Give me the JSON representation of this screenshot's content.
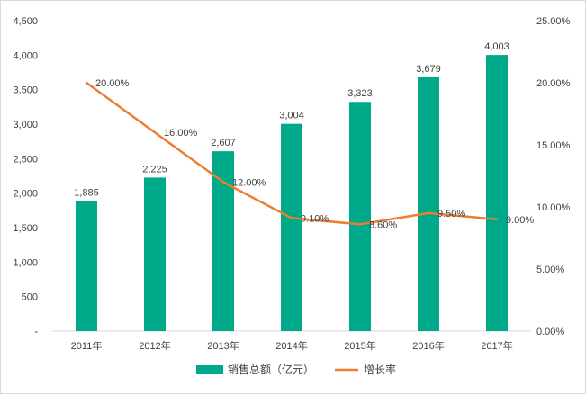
{
  "chart_data": {
    "type": "bar",
    "categories": [
      "2011年",
      "2012年",
      "2013年",
      "2014年",
      "2015年",
      "2016年",
      "2017年"
    ],
    "series": [
      {
        "name": "销售总额（亿元）",
        "type": "bar",
        "axis": "left",
        "color": "#00a98a",
        "values": [
          1885,
          2225,
          2607,
          3004,
          3323,
          3679,
          4003
        ],
        "labels": [
          "1,885",
          "2,225",
          "2,607",
          "3,004",
          "3,323",
          "3,679",
          "4,003"
        ]
      },
      {
        "name": "增长率",
        "type": "line",
        "axis": "right",
        "color": "#ed7d31",
        "values": [
          20.0,
          16.0,
          12.0,
          9.1,
          8.6,
          9.5,
          9.0
        ],
        "labels": [
          "20.00%",
          "16.00%",
          "12.00%",
          "9.10%",
          "8.60%",
          "9.50%",
          "9.00%"
        ]
      }
    ],
    "y_left": {
      "range": [
        0,
        4500
      ],
      "ticks": [
        0,
        500,
        1000,
        1500,
        2000,
        2500,
        3000,
        3500,
        4000,
        4500
      ],
      "tick_labels": [
        "-",
        "500",
        "1,000",
        "1,500",
        "2,000",
        "2,500",
        "3,000",
        "3,500",
        "4,000",
        "4,500"
      ]
    },
    "y_right": {
      "range": [
        0,
        25
      ],
      "ticks": [
        0,
        5,
        10,
        15,
        20,
        25
      ],
      "tick_labels": [
        "0.00%",
        "5.00%",
        "10.00%",
        "15.00%",
        "20.00%",
        "25.00%"
      ]
    },
    "grid": false,
    "legend": "bottom",
    "title": "",
    "xlabel": "",
    "ylabel": ""
  }
}
